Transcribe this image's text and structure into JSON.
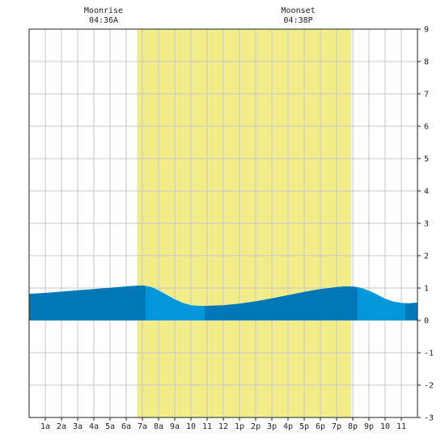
{
  "chart_data": {
    "type": "area",
    "title": "",
    "xlabel": "",
    "ylabel": "",
    "ylim": [
      -3,
      9
    ],
    "yticks": [
      -3,
      -2,
      -1,
      0,
      1,
      2,
      3,
      4,
      5,
      6,
      7,
      8,
      9
    ],
    "xlim": [
      0,
      24
    ],
    "xticks": [
      {
        "hour": 1,
        "label": "1a"
      },
      {
        "hour": 2,
        "label": "2a"
      },
      {
        "hour": 3,
        "label": "3a"
      },
      {
        "hour": 4,
        "label": "4a"
      },
      {
        "hour": 5,
        "label": "5a"
      },
      {
        "hour": 6,
        "label": "6a"
      },
      {
        "hour": 7,
        "label": "7a"
      },
      {
        "hour": 8,
        "label": "8a"
      },
      {
        "hour": 9,
        "label": "9a"
      },
      {
        "hour": 10,
        "label": "10"
      },
      {
        "hour": 11,
        "label": "11"
      },
      {
        "hour": 12,
        "label": "12"
      },
      {
        "hour": 13,
        "label": "1p"
      },
      {
        "hour": 14,
        "label": "2p"
      },
      {
        "hour": 15,
        "label": "3p"
      },
      {
        "hour": 16,
        "label": "4p"
      },
      {
        "hour": 17,
        "label": "5p"
      },
      {
        "hour": 18,
        "label": "6p"
      },
      {
        "hour": 19,
        "label": "7p"
      },
      {
        "hour": 20,
        "label": "8p"
      },
      {
        "hour": 21,
        "label": "9p"
      },
      {
        "hour": 22,
        "label": "10"
      },
      {
        "hour": 23,
        "label": "11"
      }
    ],
    "grid": true,
    "daylight_band": {
      "start_hour": 6.67,
      "end_hour": 19.9
    },
    "annotations": [
      {
        "name": "moonrise",
        "label": "Moonrise",
        "time": "04:36A",
        "hour": 4.6
      },
      {
        "name": "moonset",
        "label": "Moonset",
        "time": "04:38P",
        "hour": 16.63
      }
    ],
    "series": [
      {
        "x": [
          0,
          1,
          2,
          3,
          4,
          5,
          6,
          6.5,
          7,
          7.5,
          8,
          8.5,
          9,
          9.5,
          10,
          10.5,
          11,
          12,
          13,
          14,
          15,
          16,
          17,
          18,
          19,
          19.5,
          20,
          20.5,
          21,
          21.5,
          22,
          22.5,
          23,
          23.5,
          24
        ],
        "values": [
          0.82,
          0.85,
          0.89,
          0.93,
          0.97,
          1.01,
          1.05,
          1.07,
          1.08,
          1.04,
          0.93,
          0.79,
          0.65,
          0.54,
          0.47,
          0.45,
          0.45,
          0.47,
          0.52,
          0.59,
          0.68,
          0.78,
          0.88,
          0.97,
          1.03,
          1.05,
          1.05,
          1.01,
          0.92,
          0.8,
          0.67,
          0.58,
          0.54,
          0.53,
          0.55
        ]
      }
    ],
    "colors": {
      "daylight": "#f2ec8a",
      "tide_dark": "#0077b6",
      "tide_light": "#0396d8",
      "grid": "#c8c8c8",
      "border": "#222222"
    },
    "shade_segments": [
      {
        "from": 0,
        "to": 7.2,
        "tone": "dark"
      },
      {
        "from": 7.2,
        "to": 10.85,
        "tone": "light"
      },
      {
        "from": 10.85,
        "to": 20.3,
        "tone": "dark"
      },
      {
        "from": 20.3,
        "to": 23.25,
        "tone": "light"
      },
      {
        "from": 23.25,
        "to": 24,
        "tone": "dark"
      }
    ]
  }
}
